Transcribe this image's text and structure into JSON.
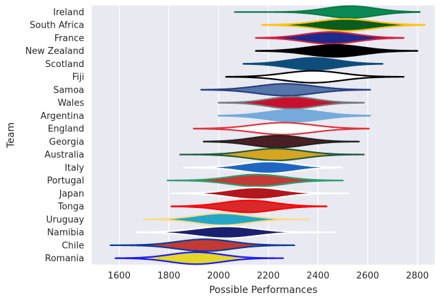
{
  "chart_data": {
    "type": "violin",
    "xlabel": "Possible Performances",
    "ylabel": "Team",
    "xlim": [
      1490,
      2870
    ],
    "xticks": [
      1600,
      1800,
      2000,
      2200,
      2400,
      2600,
      2800
    ],
    "xtick_labels": [
      "1600",
      "1800",
      "2000",
      "2200",
      "2400",
      "2600",
      "2800"
    ],
    "grid": true,
    "background": "#e9e9f2",
    "gridline_color": "#ffffff",
    "teams": [
      {
        "name": "Ireland",
        "min": 2065,
        "max": 2810,
        "mean": 2530,
        "spread": 100,
        "fill": "#0b8a55",
        "line": "#0b7a4a"
      },
      {
        "name": "South Africa",
        "min": 2175,
        "max": 2830,
        "mean": 2510,
        "spread": 115,
        "fill": "#0b5d1e",
        "line": "#ffc20e"
      },
      {
        "name": "France",
        "min": 2150,
        "max": 2745,
        "mean": 2450,
        "spread": 105,
        "fill": "#1e2a8c",
        "line": "#d6213f"
      },
      {
        "name": "New Zealand",
        "min": 2150,
        "max": 2800,
        "mean": 2470,
        "spread": 110,
        "fill": "#000000",
        "line": "#000000"
      },
      {
        "name": "Scotland",
        "min": 2100,
        "max": 2660,
        "mean": 2380,
        "spread": 100,
        "fill": "#0e4d7a",
        "line": "#0e4d7a"
      },
      {
        "name": "Fiji",
        "min": 2030,
        "max": 2745,
        "mean": 2380,
        "spread": 115,
        "fill": "#ffffff",
        "line": "#000000"
      },
      {
        "name": "Samoa",
        "min": 1930,
        "max": 2610,
        "mean": 2270,
        "spread": 115,
        "fill": "#5675a8",
        "line": "#273f80"
      },
      {
        "name": "Wales",
        "min": 2000,
        "max": 2585,
        "mean": 2295,
        "spread": 95,
        "fill": "#c8102e",
        "line": "#777777"
      },
      {
        "name": "Argentina",
        "min": 2000,
        "max": 2610,
        "mean": 2305,
        "spread": 110,
        "fill": "#75aadb",
        "line": "#75aadb"
      },
      {
        "name": "England",
        "min": 1900,
        "max": 2605,
        "mean": 2260,
        "spread": 120,
        "fill": "#ffffff",
        "line": "#e0333c"
      },
      {
        "name": "Georgia",
        "min": 1940,
        "max": 2565,
        "mean": 2240,
        "spread": 105,
        "fill": "#4a1f24",
        "line": "#222222"
      },
      {
        "name": "Australia",
        "min": 1845,
        "max": 2585,
        "mean": 2230,
        "spread": 110,
        "fill": "#d4a422",
        "line": "#1f5c3a"
      },
      {
        "name": "Italy",
        "min": 1860,
        "max": 2495,
        "mean": 2200,
        "spread": 105,
        "fill": "#1f66c1",
        "line": "#ffffff"
      },
      {
        "name": "Portugal",
        "min": 1795,
        "max": 2500,
        "mean": 2155,
        "spread": 110,
        "fill": "#c23a36",
        "line": "#2e9e6e"
      },
      {
        "name": "Japan",
        "min": 1810,
        "max": 2520,
        "mean": 2150,
        "spread": 105,
        "fill": "#b3171e",
        "line": "#ffffff"
      },
      {
        "name": "Tonga",
        "min": 1810,
        "max": 2435,
        "mean": 2120,
        "spread": 105,
        "fill": "#d82a2a",
        "line": "#ff0000"
      },
      {
        "name": "Uruguay",
        "min": 1700,
        "max": 2365,
        "mean": 2015,
        "spread": 105,
        "fill": "#26a5c4",
        "line": "#f7dc8a"
      },
      {
        "name": "Namibia",
        "min": 1670,
        "max": 2470,
        "mean": 2030,
        "spread": 120,
        "fill": "#1a1f6e",
        "line": "#ffffff"
      },
      {
        "name": "Chile",
        "min": 1565,
        "max": 2305,
        "mean": 1945,
        "spread": 110,
        "fill": "#c23a33",
        "line": "#0b3a9a"
      },
      {
        "name": "Romania",
        "min": 1585,
        "max": 2260,
        "mean": 1910,
        "spread": 105,
        "fill": "#e4d627",
        "line": "#1a1aff"
      }
    ]
  }
}
